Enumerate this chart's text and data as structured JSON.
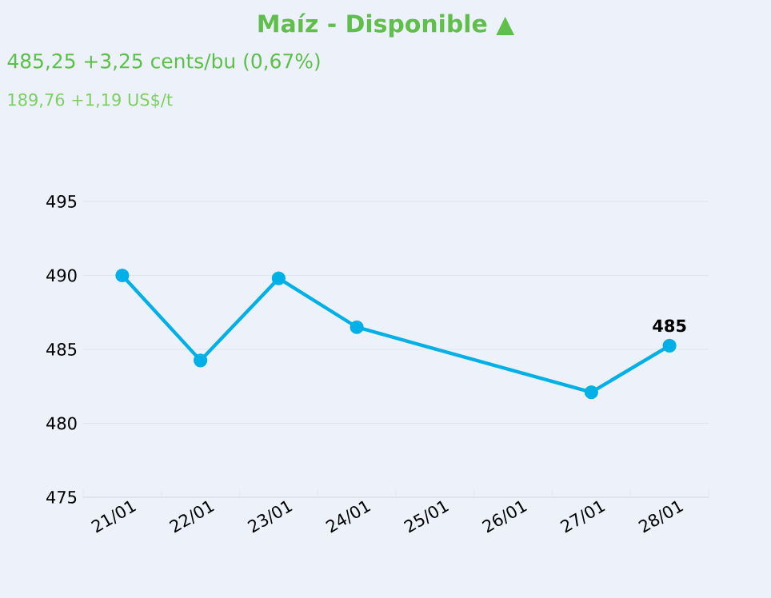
{
  "chart_data": {
    "type": "line",
    "title": "Maíz - Disponible ▲",
    "subtitle": "485,25 +3,25 cents/bu (0,67%)",
    "annotations": [
      "189,76 +1,19 US$/t"
    ],
    "categories": [
      "21/01",
      "22/01",
      "23/01",
      "24/01",
      "25/01",
      "26/01",
      "27/01",
      "28/01"
    ],
    "series": [
      {
        "color": "#00b0e6",
        "values": [
          490,
          484.25,
          489.8,
          486.5,
          null,
          null,
          482.1,
          485.25
        ],
        "value_labels": [
          null,
          null,
          null,
          null,
          null,
          null,
          null,
          "485"
        ]
      }
    ],
    "ylim": [
      475,
      495
    ],
    "yticks": [
      475,
      480,
      485,
      490,
      495
    ],
    "grid": "y",
    "marker": "circle",
    "line_style": "solid"
  }
}
